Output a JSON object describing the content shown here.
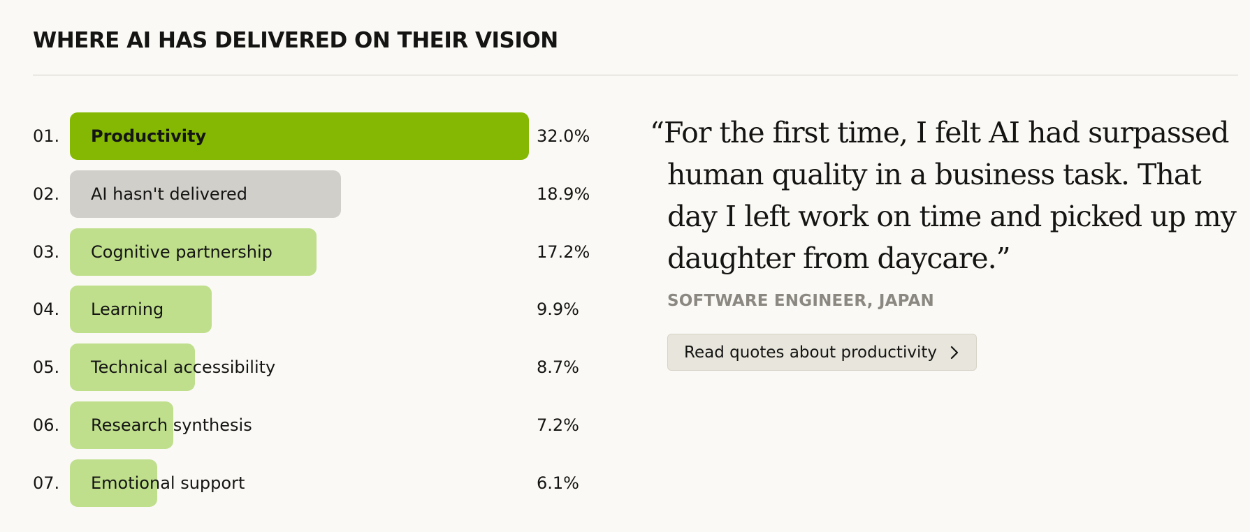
{
  "title": "WHERE AI HAS DELIVERED ON THEIR VISION",
  "colors": {
    "highlight": "#84b803",
    "neutral": "#d1cfca",
    "light": "#bfdf8c",
    "background": "#faf9f5"
  },
  "chart_data": {
    "type": "bar",
    "orientation": "horizontal",
    "unit": "%",
    "xlim": [
      0,
      32.0
    ],
    "grid": false,
    "items": [
      {
        "rank": "01.",
        "label": "Productivity",
        "value": 32.0,
        "value_label": "32.0%",
        "style": "highlight"
      },
      {
        "rank": "02.",
        "label": "AI hasn't delivered",
        "value": 18.9,
        "value_label": "18.9%",
        "style": "neutral"
      },
      {
        "rank": "03.",
        "label": "Cognitive partnership",
        "value": 17.2,
        "value_label": "17.2%",
        "style": "light"
      },
      {
        "rank": "04.",
        "label": "Learning",
        "value": 9.9,
        "value_label": "9.9%",
        "style": "light"
      },
      {
        "rank": "05.",
        "label": "Technical accessibility",
        "value": 8.7,
        "value_label": "8.7%",
        "style": "light"
      },
      {
        "rank": "06.",
        "label": "Research synthesis",
        "value": 7.2,
        "value_label": "7.2%",
        "style": "light"
      },
      {
        "rank": "07.",
        "label": "Emotional support",
        "value": 6.1,
        "value_label": "6.1%",
        "style": "light"
      }
    ]
  },
  "quote": {
    "text": "“For the first time, I felt AI had surpassed human quality in a business task. That day I left work on time and picked up my daughter from daycare.”",
    "attribution": "SOFTWARE ENGINEER, JAPAN",
    "button_label": "Read quotes about productivity",
    "button_icon": "chevron-right-icon"
  }
}
